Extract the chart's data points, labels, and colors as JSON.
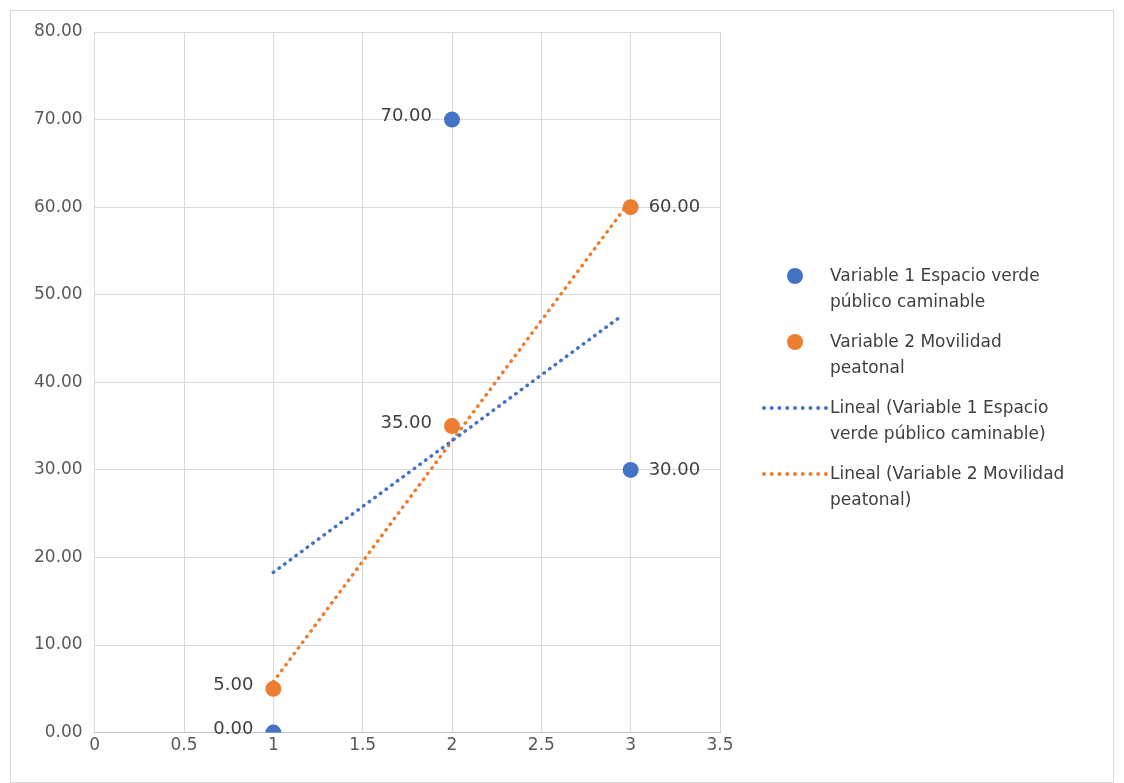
{
  "chart_data": {
    "type": "scatter",
    "xlim": [
      0,
      3.5
    ],
    "xticks": [
      0,
      0.5,
      1,
      1.5,
      2,
      2.5,
      3,
      3.5
    ],
    "ylim": [
      0,
      80
    ],
    "yticks": [
      {
        "value": 0,
        "label": "0.00"
      },
      {
        "value": 10,
        "label": "10.00"
      },
      {
        "value": 20,
        "label": "20.00"
      },
      {
        "value": 30,
        "label": "30.00"
      },
      {
        "value": 40,
        "label": "40.00"
      },
      {
        "value": 50,
        "label": "50.00"
      },
      {
        "value": 60,
        "label": "60.00"
      },
      {
        "value": 70,
        "label": "70.00"
      },
      {
        "value": 80,
        "label": "80.00"
      }
    ],
    "grid": true,
    "legend": "right",
    "marker": "circle",
    "series": [
      {
        "type": "scatter",
        "name": "Variable 1 Espacio verde público caminable",
        "color": "#4472c4",
        "x": [
          1,
          2,
          3
        ],
        "values": [
          0,
          70,
          30
        ],
        "value_labels": [
          "0.00",
          "70.00",
          "30.00"
        ]
      },
      {
        "type": "scatter",
        "name": "Variable 2 Movilidad peatonal",
        "color": "#ed7d31",
        "x": [
          1,
          2,
          3
        ],
        "values": [
          5,
          35,
          60
        ],
        "value_labels": [
          "5.00",
          "35.00",
          "60.00"
        ]
      },
      {
        "type": "line",
        "name": "Lineal (Variable 1 Espacio verde público caminable)",
        "color": "#4472c4",
        "line_style": "dotted",
        "marker": "none",
        "x": [
          1,
          2.95
        ],
        "values": [
          18.3,
          47.6
        ]
      },
      {
        "type": "line",
        "name": "Lineal (Variable 2 Movilidad peatonal)",
        "color": "#ed7d31",
        "line_style": "dotted",
        "marker": "none",
        "x": [
          1,
          3
        ],
        "values": [
          5.8,
          60.8
        ]
      }
    ]
  }
}
